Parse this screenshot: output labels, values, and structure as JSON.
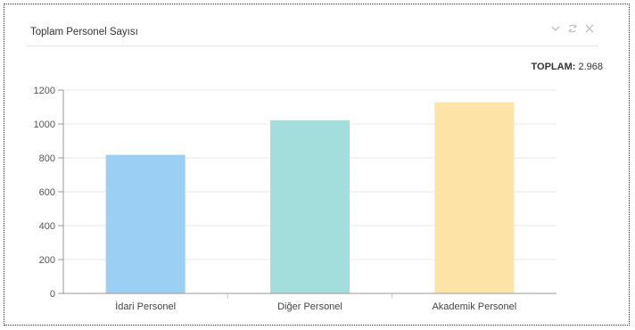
{
  "panel": {
    "title": "Toplam Personel Sayısı",
    "icons": [
      "chevron-down-icon",
      "refresh-icon",
      "close-icon"
    ],
    "total_label": "TOPLAM:",
    "total_value": "2.968"
  },
  "chart_data": {
    "type": "bar",
    "categories": [
      "İdari Personel",
      "Diğer Personel",
      "Akademik Personel"
    ],
    "values": [
      818,
      1022,
      1128
    ],
    "colors": [
      "#9bcff4",
      "#a3dedd",
      "#fde4a6"
    ],
    "ylim": [
      0,
      1200
    ],
    "yticks": [
      "0",
      "200",
      "400",
      "600",
      "800",
      "1000",
      "1200"
    ],
    "grid": true,
    "legend": "none",
    "title": "",
    "xlabel": "",
    "ylabel": ""
  }
}
